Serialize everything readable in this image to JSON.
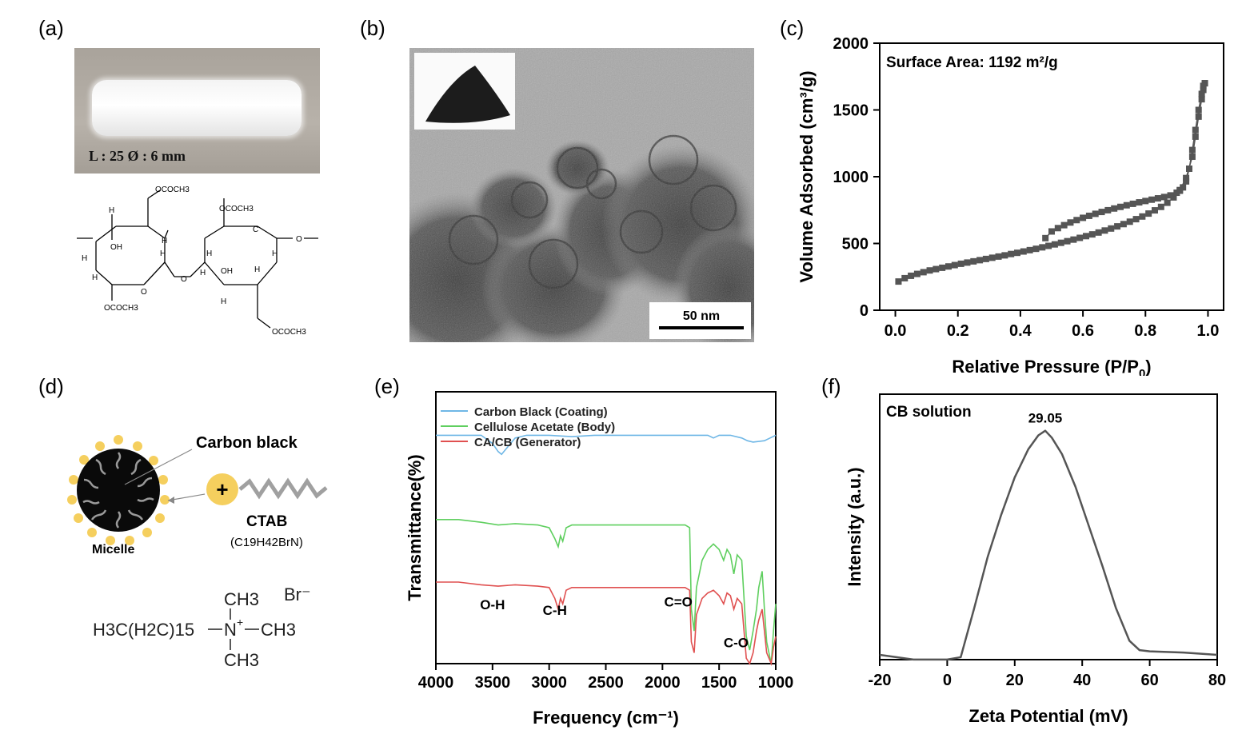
{
  "panels": {
    "a": {
      "label": "(a)",
      "photo_caption": "L : 25 Ø : 6 mm",
      "structure_labels": [
        "OCOCH3",
        "OCOCH3",
        "OCOCH3",
        "OCOCH3",
        "H",
        "H",
        "H",
        "H",
        "H",
        "H",
        "H",
        "H",
        "H",
        "H",
        "OH",
        "OH",
        "C",
        "O",
        "O",
        "O"
      ]
    },
    "b": {
      "label": "(b)",
      "scale_bar": "50 nm"
    },
    "c": {
      "label": "(c)",
      "annotation": "Surface Area: 1192 m²/g"
    },
    "d": {
      "label": "(d)",
      "carbon_black": "Carbon black",
      "micelle": "Micelle",
      "ctab": "CTAB",
      "ctab_formula": "(C19H42BrN)",
      "formula_chain": "H3C(H2C)15",
      "formula_n": "N",
      "formula_ch3_top": "CH3",
      "formula_ch3_right": "CH3",
      "formula_ch3_bottom": "CH3",
      "formula_br": "Br⁻"
    },
    "e": {
      "label": "(e)"
    },
    "f": {
      "label": "(f)"
    }
  },
  "chart_data": [
    {
      "id": "c",
      "type": "scatter",
      "xlabel": "Relative Pressure (P/P0)",
      "ylabel": "Volume Adsorbed (cm³/g)",
      "xlim": [
        -0.05,
        1.05
      ],
      "ylim": [
        0,
        2000
      ],
      "xticks": [
        0.0,
        0.2,
        0.4,
        0.6,
        0.8,
        1.0
      ],
      "yticks": [
        0,
        500,
        1000,
        1500,
        2000
      ],
      "annotation": "Surface Area: 1192 m²/g",
      "series": [
        {
          "marker": "square",
          "color": "#555555",
          "x": [
            0.01,
            0.03,
            0.05,
            0.07,
            0.09,
            0.11,
            0.13,
            0.15,
            0.17,
            0.19,
            0.21,
            0.23,
            0.25,
            0.27,
            0.29,
            0.31,
            0.33,
            0.35,
            0.37,
            0.39,
            0.41,
            0.43,
            0.45,
            0.47,
            0.49,
            0.51,
            0.53,
            0.55,
            0.57,
            0.59,
            0.61,
            0.63,
            0.65,
            0.67,
            0.69,
            0.71,
            0.73,
            0.75,
            0.77,
            0.79,
            0.81,
            0.83,
            0.85,
            0.87,
            0.89,
            0.91,
            0.93,
            0.95,
            0.96,
            0.97,
            0.98,
            0.985,
            0.99
          ],
          "y": [
            215,
            240,
            258,
            272,
            285,
            298,
            308,
            318,
            328,
            338,
            348,
            357,
            366,
            375,
            384,
            393,
            402,
            411,
            421,
            430,
            440,
            450,
            460,
            471,
            482,
            493,
            505,
            517,
            529,
            542,
            555,
            568,
            582,
            597,
            612,
            628,
            645,
            663,
            682,
            702,
            724,
            748,
            774,
            805,
            845,
            900,
            990,
            1150,
            1300,
            1450,
            1580,
            1650,
            1700
          ]
        },
        {
          "marker": "square",
          "color": "#555555",
          "x": [
            0.99,
            0.985,
            0.98,
            0.97,
            0.96,
            0.95,
            0.94,
            0.93,
            0.92,
            0.91,
            0.9,
            0.88,
            0.86,
            0.84,
            0.82,
            0.8,
            0.78,
            0.76,
            0.74,
            0.72,
            0.7,
            0.68,
            0.66,
            0.64,
            0.62,
            0.6,
            0.58,
            0.56,
            0.54,
            0.52,
            0.5,
            0.48
          ],
          "y": [
            1700,
            1680,
            1620,
            1500,
            1350,
            1200,
            1060,
            965,
            920,
            895,
            880,
            860,
            848,
            838,
            828,
            818,
            808,
            797,
            786,
            774,
            762,
            749,
            736,
            722,
            707,
            692,
            675,
            657,
            637,
            615,
            590,
            540
          ]
        }
      ]
    },
    {
      "id": "e",
      "type": "line",
      "xlabel": "Frequency (cm⁻¹)",
      "ylabel": "Transmittance(%)",
      "xlim": [
        4000,
        1000
      ],
      "xticks": [
        4000,
        3500,
        3000,
        2500,
        2000,
        1500,
        1000
      ],
      "legend_position": "top-left",
      "annotations": [
        "O-H",
        "C-H",
        "C=O",
        "C-O"
      ],
      "series": [
        {
          "name": "Carbon Black (Coating)",
          "color": "#6fb7e6",
          "x": [
            4000,
            3800,
            3600,
            3500,
            3450,
            3420,
            3380,
            3300,
            3200,
            3000,
            2800,
            2600,
            2400,
            2200,
            2000,
            1800,
            1600,
            1550,
            1500,
            1400,
            1300,
            1250,
            1200,
            1100,
            1050,
            1000
          ],
          "y": [
            0.84,
            0.84,
            0.84,
            0.81,
            0.78,
            0.77,
            0.79,
            0.83,
            0.84,
            0.84,
            0.835,
            0.84,
            0.84,
            0.84,
            0.84,
            0.84,
            0.84,
            0.83,
            0.84,
            0.84,
            0.83,
            0.82,
            0.815,
            0.82,
            0.83,
            0.84
          ]
        },
        {
          "name": "Cellulose Acetate (Body)",
          "color": "#5fcf5f",
          "x": [
            4000,
            3800,
            3600,
            3450,
            3300,
            3100,
            3000,
            2950,
            2920,
            2900,
            2880,
            2850,
            2800,
            2600,
            2400,
            2200,
            2000,
            1800,
            1760,
            1745,
            1720,
            1700,
            1650,
            1600,
            1550,
            1500,
            1460,
            1430,
            1400,
            1370,
            1340,
            1300,
            1260,
            1230,
            1200,
            1170,
            1150,
            1120,
            1100,
            1080,
            1060,
            1040,
            1020,
            1000
          ],
          "y": [
            0.53,
            0.53,
            0.52,
            0.51,
            0.515,
            0.51,
            0.5,
            0.46,
            0.43,
            0.47,
            0.45,
            0.5,
            0.51,
            0.51,
            0.51,
            0.51,
            0.51,
            0.51,
            0.5,
            0.2,
            0.12,
            0.28,
            0.38,
            0.42,
            0.44,
            0.42,
            0.38,
            0.42,
            0.4,
            0.33,
            0.4,
            0.38,
            0.1,
            0.05,
            0.12,
            0.2,
            0.28,
            0.34,
            0.2,
            0.08,
            0.04,
            0.0,
            0.12,
            0.22
          ]
        },
        {
          "name": "CA/CB (Generator)",
          "color": "#e05050",
          "x": [
            4000,
            3800,
            3600,
            3450,
            3300,
            3100,
            3000,
            2950,
            2920,
            2900,
            2880,
            2850,
            2800,
            2600,
            2400,
            2200,
            2000,
            1800,
            1760,
            1745,
            1720,
            1700,
            1650,
            1600,
            1550,
            1500,
            1460,
            1430,
            1400,
            1370,
            1340,
            1300,
            1260,
            1230,
            1200,
            1170,
            1150,
            1120,
            1100,
            1080,
            1060,
            1040,
            1020,
            1000
          ],
          "y": [
            0.3,
            0.3,
            0.29,
            0.285,
            0.29,
            0.285,
            0.28,
            0.24,
            0.2,
            0.24,
            0.22,
            0.27,
            0.28,
            0.28,
            0.28,
            0.28,
            0.28,
            0.28,
            0.27,
            0.08,
            0.04,
            0.18,
            0.24,
            0.26,
            0.27,
            0.25,
            0.22,
            0.26,
            0.25,
            0.2,
            0.24,
            0.22,
            0.02,
            0.0,
            0.04,
            0.12,
            0.16,
            0.2,
            0.12,
            0.04,
            0.02,
            0.0,
            0.06,
            0.1
          ]
        }
      ]
    },
    {
      "id": "f",
      "type": "line",
      "xlabel": "Zeta Potential (mV)",
      "ylabel": "Intensity (a.u.)",
      "xlim": [
        -20,
        80
      ],
      "xticks": [
        -20,
        0,
        20,
        40,
        60,
        80
      ],
      "annotation": "CB solution",
      "peak_label": "29.05",
      "series": [
        {
          "color": "#555555",
          "x": [
            -20,
            -10,
            -5,
            0,
            4,
            8,
            12,
            16,
            20,
            24,
            27,
            29.05,
            31,
            34,
            38,
            42,
            46,
            50,
            54,
            57,
            60,
            70,
            80
          ],
          "y": [
            0.0,
            -0.02,
            -0.02,
            -0.02,
            -0.01,
            0.2,
            0.42,
            0.6,
            0.76,
            0.88,
            0.94,
            0.96,
            0.93,
            0.86,
            0.72,
            0.55,
            0.38,
            0.2,
            0.06,
            0.02,
            0.015,
            0.01,
            0.0
          ]
        }
      ]
    }
  ]
}
